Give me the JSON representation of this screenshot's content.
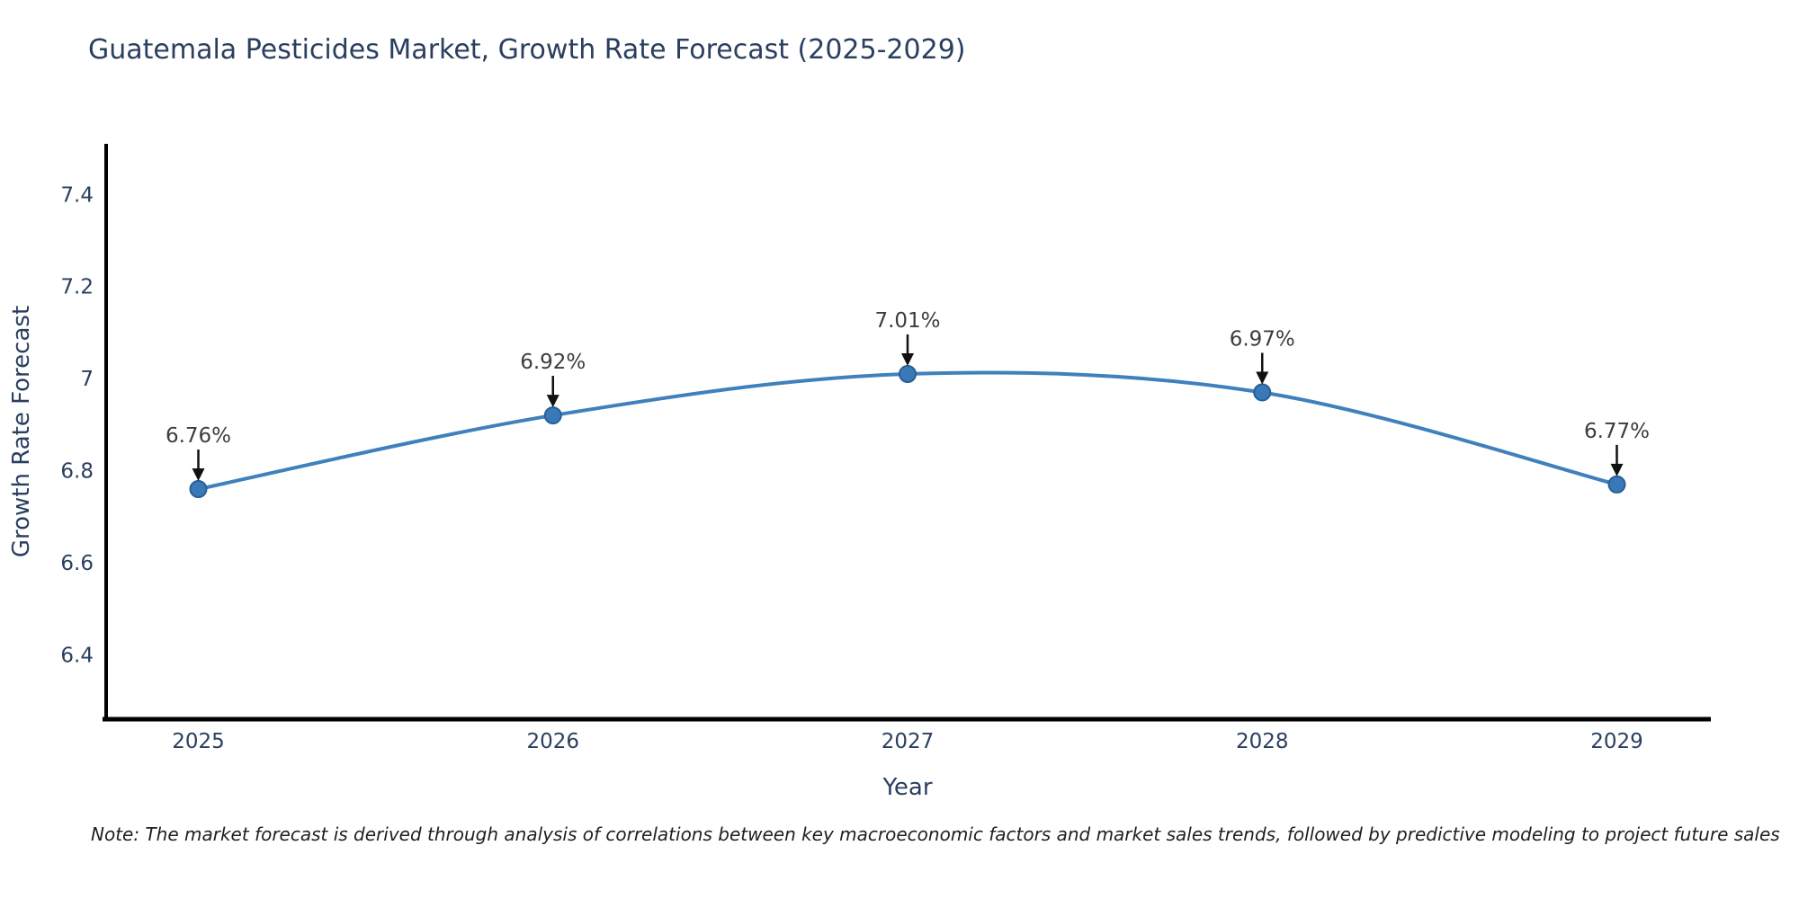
{
  "chart_data": {
    "type": "line",
    "title": "Guatemala Pesticides Market, Growth Rate Forecast (2025-2029)",
    "xlabel": "Year",
    "ylabel": "Growth Rate Forecast",
    "x": [
      2025,
      2026,
      2027,
      2028,
      2029
    ],
    "y": [
      6.76,
      6.92,
      7.01,
      6.97,
      6.77
    ],
    "point_labels": [
      "6.76%",
      "6.92%",
      "7.01%",
      "6.97%",
      "6.77%"
    ],
    "xticks": {
      "values": [
        2025,
        2026,
        2027,
        2028,
        2029
      ],
      "labels": [
        "2025",
        "2026",
        "2027",
        "2028",
        "2029"
      ]
    },
    "yticks": {
      "values": [
        7.4,
        7.2,
        7.0,
        6.8,
        6.6,
        6.4
      ],
      "labels": [
        "7.4",
        "7.2",
        "7",
        "6.8",
        "6.6",
        "6.4"
      ]
    },
    "xlim": [
      2024.74,
      2029.26
    ],
    "ylim": [
      6.26,
      7.51
    ],
    "grid": false,
    "legend": "none",
    "line_shape": "spline",
    "colors": {
      "line": "#4080bd",
      "marker_fill": "#3a79b8",
      "marker_edge": "#2a5f96",
      "axis_line": "#000000",
      "tick_text": "#2a3f5f",
      "title_text": "#2a3f5f",
      "axis_label_text": "#2a3f5f",
      "annotation_text": "#3d3d3d",
      "arrow": "#111111"
    }
  },
  "note": {
    "text": "Note: The market forecast is derived through analysis of correlations between key macroeconomic factors and market sales trends, followed by predictive modeling to project future sales"
  }
}
